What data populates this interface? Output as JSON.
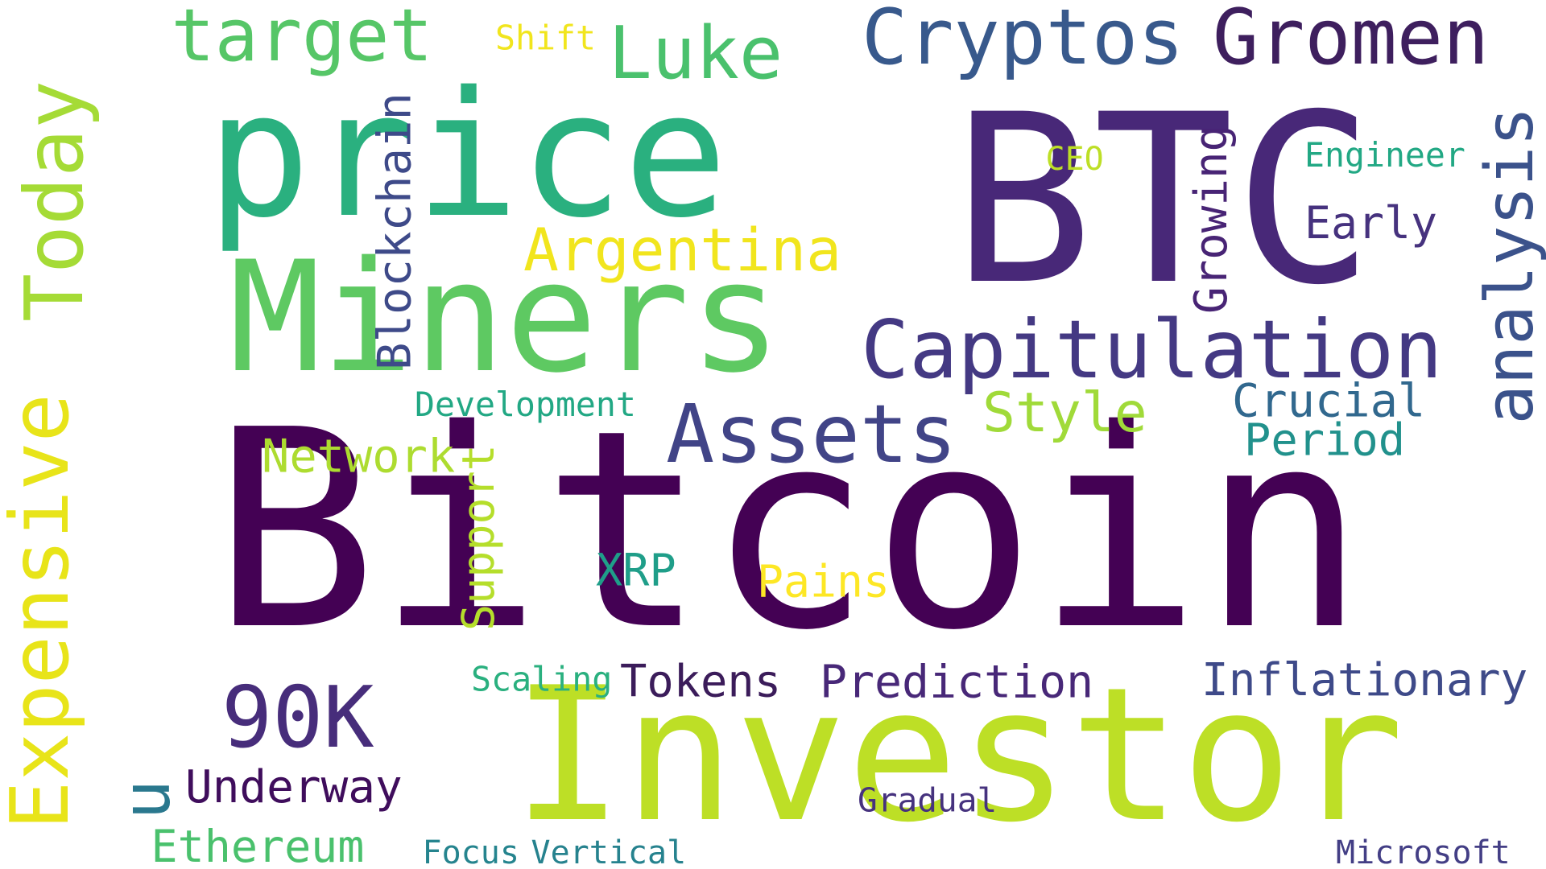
{
  "words": [
    {
      "text": "Bitcoin",
      "color": "#440154"
    },
    {
      "text": "Investor",
      "color": "#bddf26"
    },
    {
      "text": "BTC",
      "color": "#482878"
    },
    {
      "text": "price",
      "color": "#2ab07f"
    },
    {
      "text": "Miners",
      "color": "#5ec962"
    },
    {
      "text": "Capitulation",
      "color": "#443983"
    },
    {
      "text": "Cryptos",
      "color": "#38598c"
    },
    {
      "text": "Gromen",
      "color": "#3e1f5e"
    },
    {
      "text": "target",
      "color": "#56c667"
    },
    {
      "text": "Luke",
      "color": "#4ac16d"
    },
    {
      "text": "analysis",
      "color": "#3b528b"
    },
    {
      "text": "Today",
      "color": "#a5db36"
    },
    {
      "text": "Expensive",
      "color": "#e8e419"
    },
    {
      "text": "Assets",
      "color": "#414487"
    },
    {
      "text": "90K",
      "color": "#472d7b"
    },
    {
      "text": "Argentina",
      "color": "#f1e51d"
    },
    {
      "text": "Blockchain",
      "color": "#3e4a89"
    },
    {
      "text": "Growing",
      "color": "#482475"
    },
    {
      "text": "Style",
      "color": "#a0da39"
    },
    {
      "text": "Crucial",
      "color": "#31688e"
    },
    {
      "text": "Period",
      "color": "#21918c"
    },
    {
      "text": "Early",
      "color": "#46327e"
    },
    {
      "text": "Engineer",
      "color": "#22a884"
    },
    {
      "text": "CEO",
      "color": "#bddf26"
    },
    {
      "text": "Shift",
      "color": "#f1e51d"
    },
    {
      "text": "Network",
      "color": "#addc30"
    },
    {
      "text": "Development",
      "color": "#22a884"
    },
    {
      "text": "Support",
      "color": "#b5de2b"
    },
    {
      "text": "XRP",
      "color": "#1f9e89"
    },
    {
      "text": "Pains",
      "color": "#fde725"
    },
    {
      "text": "Tokens",
      "color": "#3b1c5a"
    },
    {
      "text": "Prediction",
      "color": "#482878"
    },
    {
      "text": "Inflationary",
      "color": "#3e4a89"
    },
    {
      "text": "Scaling",
      "color": "#2ab07f"
    },
    {
      "text": "u",
      "color": "#2a788e"
    },
    {
      "text": "Underway",
      "color": "#3f0d5c"
    },
    {
      "text": "Ethereum",
      "color": "#4ac16d"
    },
    {
      "text": "Gradual",
      "color": "#46327e"
    },
    {
      "text": "Focus",
      "color": "#25848e"
    },
    {
      "text": "Vertical",
      "color": "#26828e"
    },
    {
      "text": "Microsoft",
      "color": "#433e85"
    }
  ]
}
